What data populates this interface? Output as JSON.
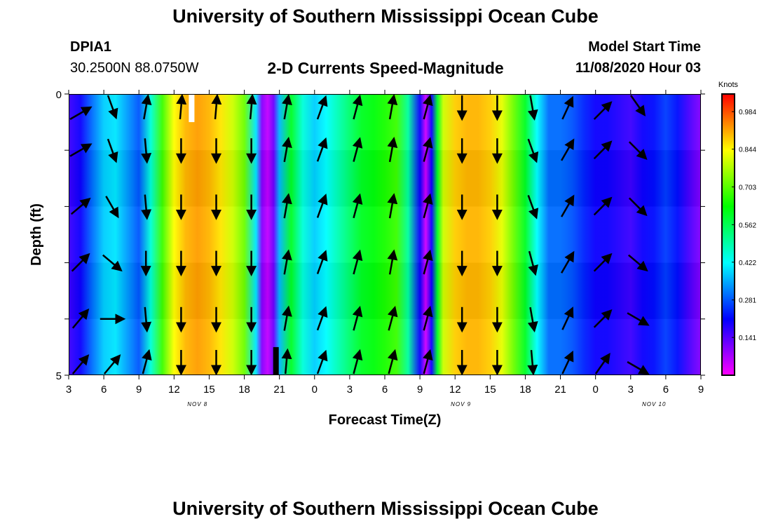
{
  "header": {
    "title_top": "University of Southern Mississippi Ocean Cube",
    "title_bottom": "University of Southern Mississippi Ocean Cube",
    "station_id": "DPIA1",
    "station_coords": "30.2500N 88.0750W",
    "plot_title": "2-D Currents Speed-Magnitude",
    "model_start_label": "Model Start Time",
    "model_start_value": "11/08/2020 Hour 03"
  },
  "chart_data": {
    "type": "heatmap",
    "title": "2-D Currents Speed-Magnitude",
    "xlabel": "Forecast Time(Z)",
    "ylabel": "Depth (ft)",
    "x_ticks": [
      "3",
      "6",
      "9",
      "12",
      "15",
      "18",
      "21",
      "0",
      "3",
      "6",
      "9",
      "12",
      "15",
      "18",
      "21",
      "0",
      "3",
      "6",
      "9"
    ],
    "x_range_hours": [
      3,
      57
    ],
    "date_labels": [
      {
        "text": "NOV 8",
        "at_hour": 14
      },
      {
        "text": "NOV 9",
        "at_hour": 36.5
      },
      {
        "text": "NOV 10",
        "at_hour": 53
      }
    ],
    "y_ticks": [
      "0",
      "5"
    ],
    "ylim": [
      0,
      5
    ],
    "y_inverted": true,
    "colorbar": {
      "label": "Knots",
      "ticks": [
        "0.984",
        "0.844",
        "0.703",
        "0.562",
        "0.422",
        "0.281",
        "0.141"
      ],
      "tick_values": [
        0.984,
        0.844,
        0.703,
        0.562,
        0.422,
        0.281,
        0.141
      ],
      "range": [
        0,
        1.05
      ]
    },
    "speed_profile": {
      "hours": [
        3,
        4,
        5,
        6,
        7,
        8,
        9,
        10,
        11,
        12,
        13,
        14,
        15,
        16,
        17,
        18,
        19,
        19.5,
        20,
        20.5,
        21,
        22,
        23,
        24,
        25,
        26,
        27,
        28,
        29,
        30,
        31,
        32,
        33,
        33.5,
        34,
        34.5,
        35,
        36,
        37,
        38,
        39,
        40,
        41,
        42,
        43,
        44,
        45,
        46,
        47,
        48,
        49,
        50,
        51,
        52,
        53,
        54,
        55,
        56,
        57
      ],
      "values": [
        0.16,
        0.2,
        0.3,
        0.38,
        0.4,
        0.34,
        0.28,
        0.45,
        0.68,
        0.84,
        0.9,
        0.92,
        0.9,
        0.86,
        0.8,
        0.72,
        0.4,
        0.1,
        0.05,
        0.12,
        0.36,
        0.6,
        0.45,
        0.38,
        0.42,
        0.48,
        0.54,
        0.6,
        0.62,
        0.65,
        0.68,
        0.5,
        0.2,
        0.04,
        0.2,
        0.6,
        0.8,
        0.88,
        0.9,
        0.9,
        0.88,
        0.82,
        0.72,
        0.6,
        0.42,
        0.3,
        0.3,
        0.28,
        0.24,
        0.2,
        0.2,
        0.18,
        0.16,
        0.2,
        0.22,
        0.26,
        0.22,
        0.15,
        0.1
      ]
    },
    "vector_columns": [
      {
        "hour": 4,
        "dirs": [
          60,
          60,
          50,
          45,
          40,
          40
        ]
      },
      {
        "hour": 6.7,
        "dirs": [
          160,
          160,
          150,
          130,
          90,
          40
        ]
      },
      {
        "hour": 9.6,
        "dirs": [
          10,
          175,
          175,
          180,
          175,
          15
        ]
      },
      {
        "hour": 12.6,
        "dirs": [
          5,
          180,
          180,
          180,
          180,
          180
        ]
      },
      {
        "hour": 15.6,
        "dirs": [
          5,
          180,
          180,
          180,
          180,
          180
        ]
      },
      {
        "hour": 18.6,
        "dirs": [
          5,
          180,
          180,
          180,
          180,
          180
        ]
      },
      {
        "hour": 21.6,
        "dirs": [
          10,
          10,
          10,
          10,
          10,
          5
        ]
      },
      {
        "hour": 24.6,
        "dirs": [
          20,
          20,
          20,
          20,
          20,
          20
        ]
      },
      {
        "hour": 27.6,
        "dirs": [
          15,
          15,
          15,
          15,
          15,
          15
        ]
      },
      {
        "hour": 30.6,
        "dirs": [
          10,
          10,
          10,
          10,
          15,
          15
        ]
      },
      {
        "hour": 33.6,
        "dirs": [
          15,
          15,
          15,
          15,
          15,
          15
        ]
      },
      {
        "hour": 36.6,
        "dirs": [
          180,
          180,
          180,
          180,
          180,
          180
        ]
      },
      {
        "hour": 39.6,
        "dirs": [
          180,
          180,
          180,
          180,
          180,
          180
        ]
      },
      {
        "hour": 42.6,
        "dirs": [
          170,
          160,
          160,
          165,
          170,
          175
        ]
      },
      {
        "hour": 45.6,
        "dirs": [
          25,
          30,
          30,
          30,
          25,
          25
        ]
      },
      {
        "hour": 48.6,
        "dirs": [
          45,
          45,
          45,
          45,
          45,
          35
        ]
      },
      {
        "hour": 51.6,
        "dirs": [
          145,
          135,
          135,
          130,
          120,
          120
        ]
      }
    ],
    "markers": [
      {
        "hour": 13.5,
        "depth": [
          0,
          0.5
        ],
        "color": "#ffffff"
      },
      {
        "hour": 20.7,
        "depth": [
          4.5,
          5
        ],
        "color": "#000000"
      }
    ]
  }
}
